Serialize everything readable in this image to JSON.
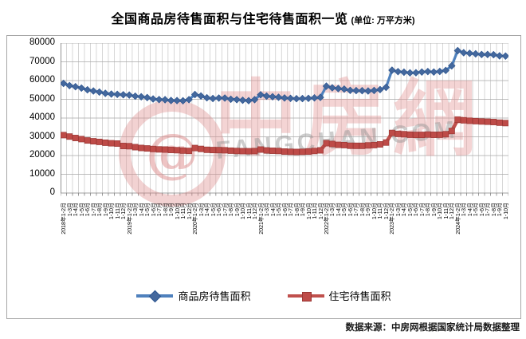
{
  "title": "全国商品房待售面积与住宅待售面积一览",
  "title_unit": "(单位: 万平方米)",
  "source_note": "数据来源：中房网根据国家统计局数据整理",
  "watermark": {
    "at_glyph": "@",
    "brand": "中房網",
    "domain": "FANGCHAN.COM"
  },
  "legend": {
    "items": [
      {
        "label": "商品房待售面积",
        "color": "#4F81BD",
        "marker": "diamond"
      },
      {
        "label": "住宅待售面积",
        "color": "#C0504D",
        "marker": "square"
      }
    ]
  },
  "chart_data": {
    "type": "line",
    "title": "全国商品房待售面积与住宅待售面积一览",
    "unit": "万平方米",
    "ylim": [
      0,
      80000
    ],
    "yticks": [
      0,
      10000,
      20000,
      30000,
      40000,
      50000,
      60000,
      70000,
      80000
    ],
    "grid": "both",
    "legend_position": "bottom",
    "categories": [
      "2018年1-2月",
      "1-3月",
      "1-4月",
      "1-5月",
      "1-6月",
      "1-7月",
      "1-8月",
      "1-9月",
      "1-10月",
      "1-11月",
      "1-12月",
      "2019年1-2月",
      "1-3月",
      "1-4月",
      "1-5月",
      "1-6月",
      "1-7月",
      "1-8月",
      "1-9月",
      "1-10月",
      "1-11月",
      "1-12月",
      "2020年1-2月",
      "1-3月",
      "1-4月",
      "1-5月",
      "1-6月",
      "1-7月",
      "1-8月",
      "1-9月",
      "1-10月",
      "1-11月",
      "1-12月",
      "2021年1-2月",
      "1-3月",
      "1-4月",
      "1-5月",
      "1-6月",
      "1-7月",
      "1-8月",
      "1-9月",
      "1-10月",
      "1-11月",
      "1-12月",
      "2022年1-2月",
      "1-3月",
      "1-4月",
      "1-5月",
      "1-6月",
      "1-7月",
      "1-8月",
      "1-9月",
      "1-10月",
      "1-11月",
      "1-12月",
      "2023年1-2月",
      "1-3月",
      "1-4月",
      "1-5月",
      "1-6月",
      "1-7月",
      "1-8月",
      "1-9月",
      "1-10月",
      "1-11月",
      "1-12月",
      "2024年1-2月",
      "1-3月",
      "1-4月",
      "1-5月",
      "1-6月",
      "1-7月",
      "1-8月",
      "1-9月",
      "1-10月"
    ],
    "series": [
      {
        "name": "商品房待售面积",
        "color": "#4F81BD",
        "marker": "diamond",
        "values": [
          58468,
          57329,
          56726,
          56010,
          55083,
          54428,
          53873,
          53191,
          52789,
          52627,
          52414,
          52251,
          51646,
          51380,
          50928,
          50162,
          49876,
          49784,
          49346,
          49323,
          49221,
          49821,
          52563,
          51779,
          50826,
          50438,
          50662,
          50691,
          50052,
          49832,
          49492,
          49287,
          49850,
          52425,
          51693,
          51380,
          51087,
          50738,
          50492,
          50359,
          50385,
          50494,
          50759,
          51023,
          57026,
          56113,
          55734,
          55433,
          54784,
          54655,
          54605,
          54426,
          54734,
          55203,
          56366,
          65528,
          64770,
          64487,
          64120,
          64159,
          64564,
          64795,
          64537,
          64835,
          65395,
          67857,
          75969,
          74833,
          74553,
          74256,
          73894,
          73926,
          73783,
          73177,
          73057
        ]
      },
      {
        "name": "住宅待售面积",
        "color": "#C0504D",
        "marker": "square",
        "values": [
          30906,
          30130,
          29382,
          28758,
          28026,
          27610,
          27258,
          26869,
          26573,
          26382,
          25091,
          24988,
          24481,
          24036,
          23787,
          23498,
          23295,
          23173,
          22971,
          22859,
          22640,
          22473,
          23990,
          23551,
          23069,
          22916,
          22902,
          22817,
          22616,
          22414,
          22324,
          22296,
          22379,
          23178,
          22738,
          22554,
          22424,
          22125,
          21996,
          21905,
          22002,
          22121,
          22409,
          22761,
          26592,
          26167,
          25716,
          25579,
          25249,
          25202,
          25197,
          25389,
          25567,
          25958,
          26947,
          32041,
          31582,
          31348,
          31087,
          31024,
          31017,
          31193,
          31081,
          31119,
          31355,
          33119,
          39088,
          38804,
          38544,
          38327,
          38163,
          38025,
          37856,
          37529,
          37312
        ]
      }
    ]
  }
}
